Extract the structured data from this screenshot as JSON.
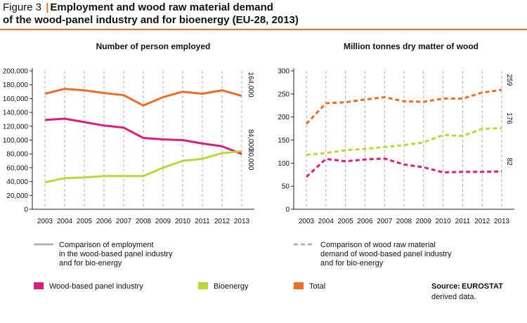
{
  "figure": {
    "number": "Figure 3",
    "separator": "|",
    "title_line1": "Employment and wood raw material demand",
    "title_line2": "of the wood-panel industry and for bioenergy (EU-28, 2013)"
  },
  "colors": {
    "wood_panel": "#d6217a",
    "bioenergy": "#bfd63a",
    "total": "#e8702a",
    "grid": "#b0b0b0",
    "legend_gray": "#b3b3b3",
    "accent_rule": "#e8702a"
  },
  "chart_data": [
    {
      "type": "line",
      "title": "Number of person employed",
      "xlabel": "",
      "ylabel": "",
      "line_style": "solid",
      "categories": [
        "2003",
        "2004",
        "2005",
        "2006",
        "2007",
        "2008",
        "2009",
        "2010",
        "2011",
        "2012",
        "2013"
      ],
      "ylim": [
        0,
        200000
      ],
      "yticks": [
        0,
        20000,
        40000,
        60000,
        80000,
        100000,
        120000,
        140000,
        160000,
        180000,
        200000
      ],
      "ytick_labels": [
        "0",
        "20,000",
        "40,000",
        "60,000",
        "80,000",
        "100,000",
        "120,000",
        "140,000",
        "160,000",
        "180,000",
        "200,000"
      ],
      "grid": "vertical dashed",
      "series": [
        {
          "name": "Total",
          "color_key": "total",
          "values": [
            167000,
            174000,
            172000,
            168000,
            165000,
            150000,
            162000,
            170000,
            167000,
            172000,
            164000
          ],
          "end_label": "164,000"
        },
        {
          "name": "Wood-based panel industry",
          "color_key": "wood_panel",
          "values": [
            129000,
            131000,
            126000,
            121000,
            118000,
            103000,
            101000,
            100000,
            95000,
            91000,
            80000
          ],
          "end_label": "80,000"
        },
        {
          "name": "Bioenergy",
          "color_key": "bioenergy",
          "values": [
            39000,
            45000,
            46000,
            48000,
            48000,
            48000,
            60000,
            70000,
            73000,
            81000,
            84000
          ],
          "end_label": "84,000"
        }
      ]
    },
    {
      "type": "line",
      "title": "Million tonnes dry matter of wood",
      "xlabel": "",
      "ylabel": "",
      "line_style": "dashed",
      "categories": [
        "2003",
        "2004",
        "2005",
        "2006",
        "2007",
        "2008",
        "2009",
        "2010",
        "2011",
        "2012",
        "2013"
      ],
      "ylim": [
        0,
        300
      ],
      "yticks": [
        0,
        50,
        100,
        150,
        200,
        250,
        300
      ],
      "ytick_labels": [
        "0",
        "50",
        "100",
        "150",
        "200",
        "250",
        "300"
      ],
      "grid": "vertical dashed",
      "series": [
        {
          "name": "Total",
          "color_key": "total",
          "values": [
            185,
            230,
            232,
            238,
            243,
            234,
            233,
            240,
            240,
            253,
            259
          ],
          "end_label": "259"
        },
        {
          "name": "Bioenergy",
          "color_key": "bioenergy",
          "values": [
            118,
            122,
            128,
            131,
            135,
            139,
            145,
            161,
            159,
            174,
            176
          ],
          "end_label": "176"
        },
        {
          "name": "Wood-based panel industry",
          "color_key": "wood_panel",
          "values": [
            70,
            109,
            104,
            108,
            110,
            97,
            91,
            80,
            81,
            81,
            82
          ],
          "end_label": "82"
        }
      ]
    }
  ],
  "legend": {
    "employment_line": [
      "Comparison of employment",
      "in the wood-based panel industry",
      "and for bio-energy"
    ],
    "demand_line": [
      "Comparison of wood raw material",
      "demand of wood-based panel industry",
      "and for bio-energy"
    ],
    "wood_panel": "Wood-based panel industry",
    "bioenergy": "Bioenergy",
    "total": "Total"
  },
  "source": {
    "label": "Source:",
    "text": "EUROSTAT",
    "line2": "derived data."
  }
}
